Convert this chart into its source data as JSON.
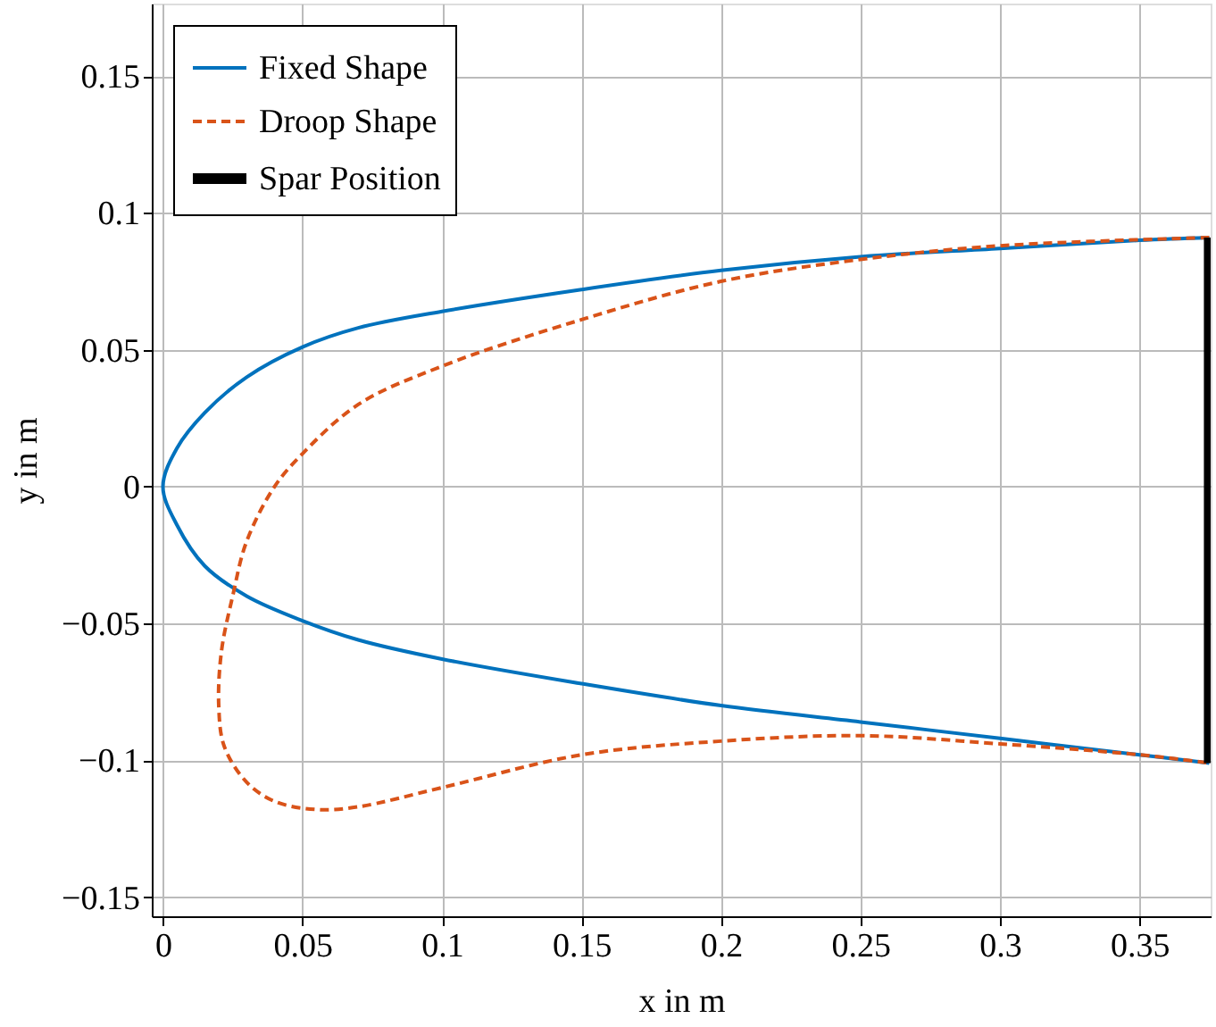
{
  "chart_data": {
    "type": "line",
    "xlabel": "x in m",
    "ylabel": "y in m",
    "xlim": [
      -0.004,
      0.3755
    ],
    "ylim": [
      -0.157,
      0.1765
    ],
    "xticks": [
      0,
      0.05,
      0.1,
      0.15,
      0.2,
      0.25,
      0.3,
      0.35
    ],
    "yticks": [
      {
        "value": -0.15,
        "label": "−0.15"
      },
      {
        "value": -0.1,
        "label": "−0.1"
      },
      {
        "value": -0.05,
        "label": "−0.05"
      },
      0,
      0.05,
      0.1,
      0.15
    ],
    "grid": true,
    "legend": "top left",
    "marker": "none",
    "series": [
      {
        "name": "Fixed Shape",
        "color": "#0072bd",
        "line_style": "solid",
        "x": [
          0.375,
          0.35,
          0.3,
          0.25,
          0.2,
          0.15,
          0.1,
          0.07,
          0.05,
          0.03,
          0.015,
          0.005,
          0,
          0.005,
          0.015,
          0.03,
          0.05,
          0.07,
          0.1,
          0.15,
          0.2,
          0.25,
          0.3,
          0.35,
          0.375
        ],
        "values": [
          0.091,
          0.09,
          0.087,
          0.084,
          0.079,
          0.072,
          0.064,
          0.058,
          0.051,
          0.04,
          0.027,
          0.014,
          0,
          -0.014,
          -0.029,
          -0.04,
          -0.049,
          -0.056,
          -0.063,
          -0.072,
          -0.08,
          -0.086,
          -0.092,
          -0.098,
          -0.101
        ]
      },
      {
        "name": "Droop Shape",
        "color": "#d95319",
        "line_style": "dashed",
        "x": [
          0.375,
          0.3,
          0.25,
          0.2,
          0.15,
          0.1,
          0.07,
          0.05,
          0.04,
          0.03,
          0.025,
          0.021,
          0.02,
          0.022,
          0.03,
          0.04,
          0.055,
          0.07,
          0.1,
          0.15,
          0.2,
          0.25,
          0.3,
          0.35,
          0.375
        ],
        "values": [
          0.091,
          0.088,
          0.083,
          0.075,
          0.061,
          0.044,
          0.03,
          0.012,
          0,
          -0.02,
          -0.04,
          -0.06,
          -0.08,
          -0.095,
          -0.108,
          -0.115,
          -0.118,
          -0.117,
          -0.11,
          -0.098,
          -0.093,
          -0.091,
          -0.094,
          -0.098,
          -0.101
        ]
      },
      {
        "name": "Spar Position",
        "color": "#000000",
        "line_style": "solid",
        "x": [
          0.375,
          0.375
        ],
        "values": [
          0.091,
          -0.101
        ]
      }
    ]
  }
}
